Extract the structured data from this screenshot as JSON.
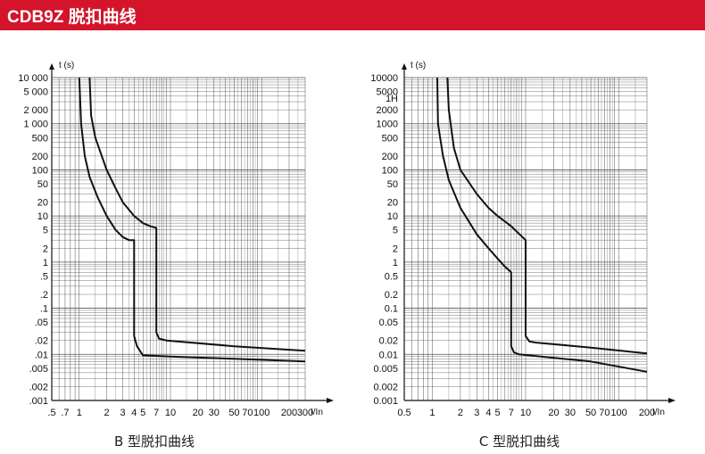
{
  "header": {
    "title": "CDB9Z 脱扣曲线"
  },
  "chart_data": [
    {
      "type": "line",
      "caption": "B 型脱扣曲线",
      "xlabel": "I/In",
      "ylabel": "t (s)",
      "xscale": "log",
      "yscale": "log",
      "xlim": [
        0.5,
        300
      ],
      "ylim": [
        0.001,
        10000
      ],
      "grid": true,
      "x_ticks": [
        {
          "v": 0.5,
          "label": ".5"
        },
        {
          "v": 0.7,
          "label": ".7"
        },
        {
          "v": 1,
          "label": "1"
        },
        {
          "v": 2,
          "label": "2"
        },
        {
          "v": 3,
          "label": "3"
        },
        {
          "v": 4,
          "label": "4"
        },
        {
          "v": 5,
          "label": "5"
        },
        {
          "v": 7,
          "label": "7"
        },
        {
          "v": 10,
          "label": "10"
        },
        {
          "v": 20,
          "label": "20"
        },
        {
          "v": 30,
          "label": "30"
        },
        {
          "v": 50,
          "label": "50"
        },
        {
          "v": 70,
          "label": "70"
        },
        {
          "v": 100,
          "label": "100"
        },
        {
          "v": 200,
          "label": "200"
        },
        {
          "v": 300,
          "label": "300"
        }
      ],
      "y_ticks": [
        {
          "v": 10000,
          "label": "10 000"
        },
        {
          "v": 5000,
          "label": "5 000"
        },
        {
          "v": 2000,
          "label": "2 000"
        },
        {
          "v": 1000,
          "label": "1 000"
        },
        {
          "v": 500,
          "label": "500"
        },
        {
          "v": 200,
          "label": "200"
        },
        {
          "v": 100,
          "label": "100"
        },
        {
          "v": 50,
          "label": "50"
        },
        {
          "v": 20,
          "label": "20"
        },
        {
          "v": 10,
          "label": "10"
        },
        {
          "v": 5,
          "label": "5"
        },
        {
          "v": 2,
          "label": "2"
        },
        {
          "v": 1,
          "label": "1"
        },
        {
          "v": 0.5,
          "label": ".5"
        },
        {
          "v": 0.2,
          "label": ".2"
        },
        {
          "v": 0.1,
          "label": ".1"
        },
        {
          "v": 0.05,
          "label": ".05"
        },
        {
          "v": 0.02,
          "label": ".02"
        },
        {
          "v": 0.01,
          "label": ".01"
        },
        {
          "v": 0.005,
          "label": ".005"
        },
        {
          "v": 0.002,
          "label": ".002"
        },
        {
          "v": 0.001,
          "label": ".001"
        }
      ],
      "series": [
        {
          "points": [
            [
              1.0,
              10000
            ],
            [
              1.05,
              1000
            ],
            [
              1.15,
              200
            ],
            [
              1.3,
              70
            ],
            [
              1.6,
              25
            ],
            [
              2.0,
              10
            ],
            [
              2.5,
              5
            ],
            [
              3.0,
              3.5
            ],
            [
              3.5,
              3.0
            ],
            [
              4.0,
              3.0
            ],
            [
              4.0,
              0.025
            ],
            [
              4.3,
              0.015
            ],
            [
              5.0,
              0.0095
            ],
            [
              10,
              0.009
            ],
            [
              50,
              0.008
            ],
            [
              300,
              0.007
            ]
          ]
        },
        {
          "points": [
            [
              1.3,
              10000
            ],
            [
              1.35,
              1500
            ],
            [
              1.5,
              500
            ],
            [
              2.0,
              100
            ],
            [
              2.5,
              40
            ],
            [
              3.0,
              20
            ],
            [
              4.0,
              10
            ],
            [
              5.0,
              7
            ],
            [
              6.0,
              6
            ],
            [
              7.0,
              5.5
            ],
            [
              7.0,
              0.03
            ],
            [
              7.5,
              0.022
            ],
            [
              9.0,
              0.02
            ],
            [
              50,
              0.015
            ],
            [
              300,
              0.012
            ]
          ]
        }
      ]
    },
    {
      "type": "line",
      "caption": "C 型脱扣曲线",
      "xlabel": "I/In",
      "ylabel": "t (s)",
      "xscale": "log",
      "yscale": "log",
      "xlim": [
        0.5,
        200
      ],
      "ylim": [
        0.001,
        10000
      ],
      "grid": true,
      "x_ticks": [
        {
          "v": 0.5,
          "label": "0.5"
        },
        {
          "v": 1,
          "label": "1"
        },
        {
          "v": 2,
          "label": "2"
        },
        {
          "v": 3,
          "label": "3"
        },
        {
          "v": 4,
          "label": "4"
        },
        {
          "v": 5,
          "label": "5"
        },
        {
          "v": 7,
          "label": "7"
        },
        {
          "v": 10,
          "label": "10"
        },
        {
          "v": 20,
          "label": "20"
        },
        {
          "v": 30,
          "label": "30"
        },
        {
          "v": 50,
          "label": "50"
        },
        {
          "v": 70,
          "label": "70"
        },
        {
          "v": 100,
          "label": "100"
        },
        {
          "v": 200,
          "label": "200"
        }
      ],
      "y_ticks": [
        {
          "v": 10000,
          "label": "10000"
        },
        {
          "v": 5000,
          "label": "5000"
        },
        {
          "v": 3600,
          "label": "1H"
        },
        {
          "v": 2000,
          "label": "2000"
        },
        {
          "v": 1000,
          "label": "1000"
        },
        {
          "v": 500,
          "label": "500"
        },
        {
          "v": 200,
          "label": "200"
        },
        {
          "v": 100,
          "label": "100"
        },
        {
          "v": 50,
          "label": "50"
        },
        {
          "v": 20,
          "label": "20"
        },
        {
          "v": 10,
          "label": "10"
        },
        {
          "v": 5,
          "label": "5"
        },
        {
          "v": 2,
          "label": "2"
        },
        {
          "v": 1,
          "label": "1"
        },
        {
          "v": 0.5,
          "label": "0.5"
        },
        {
          "v": 0.2,
          "label": "0.2"
        },
        {
          "v": 0.1,
          "label": "0.1"
        },
        {
          "v": 0.05,
          "label": "0.05"
        },
        {
          "v": 0.02,
          "label": "0.02"
        },
        {
          "v": 0.01,
          "label": "0.01"
        },
        {
          "v": 0.005,
          "label": "0.005"
        },
        {
          "v": 0.002,
          "label": "0.002"
        },
        {
          "v": 0.001,
          "label": "0.001"
        }
      ],
      "series": [
        {
          "points": [
            [
              1.13,
              10000
            ],
            [
              1.15,
              1000
            ],
            [
              1.3,
              200
            ],
            [
              1.5,
              60
            ],
            [
              2.0,
              15
            ],
            [
              3.0,
              4
            ],
            [
              4.0,
              2
            ],
            [
              5.0,
              1.2
            ],
            [
              6.0,
              0.8
            ],
            [
              7.0,
              0.6
            ],
            [
              7.0,
              0.015
            ],
            [
              7.5,
              0.011
            ],
            [
              8.5,
              0.01
            ],
            [
              50,
              0.007
            ],
            [
              200,
              0.0042
            ]
          ]
        },
        {
          "points": [
            [
              1.45,
              10000
            ],
            [
              1.5,
              2000
            ],
            [
              1.7,
              300
            ],
            [
              2.0,
              100
            ],
            [
              3.0,
              30
            ],
            [
              4.0,
              15
            ],
            [
              5.0,
              10
            ],
            [
              7.0,
              6
            ],
            [
              10.0,
              3
            ],
            [
              10.0,
              0.025
            ],
            [
              11.0,
              0.019
            ],
            [
              13.0,
              0.018
            ],
            [
              50,
              0.014
            ],
            [
              200,
              0.0105
            ]
          ]
        }
      ]
    }
  ]
}
